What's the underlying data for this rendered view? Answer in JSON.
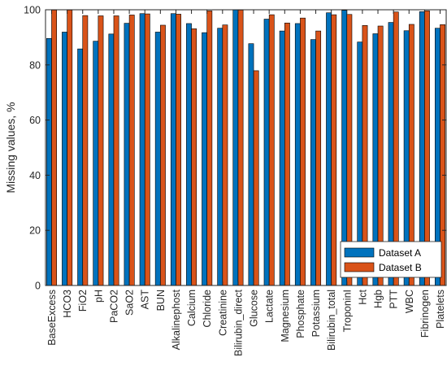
{
  "chart_data": {
    "type": "bar",
    "ylabel": "Missing values, %",
    "xlabel": "",
    "title": "",
    "ylim": [
      0,
      100
    ],
    "yticks": [
      0,
      20,
      40,
      60,
      80,
      100
    ],
    "grid": false,
    "legend_position": "bottom-right",
    "categories": [
      "BaseExcess",
      "HCO3",
      "FiO2",
      "pH",
      "PaCO2",
      "SaO2",
      "AST",
      "BUN",
      "Alkalinephost",
      "Calcium",
      "Chloride",
      "Creatinine",
      "Bilirubin_direct",
      "Glucose",
      "Lactate",
      "Magnesium",
      "Phosphate",
      "Potassium",
      "Bilirubin_total",
      "TroponinI",
      "Hct",
      "Hgb",
      "PTT",
      "WBC",
      "Fibrinogen",
      "Platelets"
    ],
    "category_labels": [
      "BaseExcess",
      "HCO3",
      "FiO2",
      "pH",
      "PaCO2",
      "SaO2",
      "AST",
      "BUN",
      "Alkalinephost",
      "Calcium",
      "Chloride",
      "Creatinine",
      "Bilirubin_direct",
      "Glucose",
      "Lactate",
      "Magnesium",
      "Phosphate",
      "Potassium",
      "Bilirubin_total",
      "TroponinI",
      "Hct",
      "Hgb",
      "PTT",
      "WBC",
      "Fibrinogen",
      "Platelets"
    ],
    "series": [
      {
        "name": "Dataset A",
        "color": "#0072BD",
        "values": [
          89.6,
          91.9,
          85.8,
          88.6,
          91.2,
          95.1,
          98.6,
          91.9,
          98.6,
          95.0,
          91.7,
          93.3,
          100.0,
          87.7,
          96.6,
          92.3,
          95.0,
          89.2,
          98.9,
          99.8,
          88.3,
          91.3,
          95.4,
          92.4,
          99.3,
          93.3
        ]
      },
      {
        "name": "Dataset B",
        "color": "#D95319",
        "values": [
          99.9,
          99.9,
          97.9,
          97.8,
          97.8,
          98.1,
          98.5,
          94.4,
          98.4,
          93.1,
          99.6,
          94.5,
          99.9,
          77.9,
          98.2,
          95.2,
          97.0,
          92.3,
          98.2,
          98.3,
          94.3,
          94.1,
          99.2,
          94.7,
          99.6,
          94.6
        ]
      }
    ]
  }
}
